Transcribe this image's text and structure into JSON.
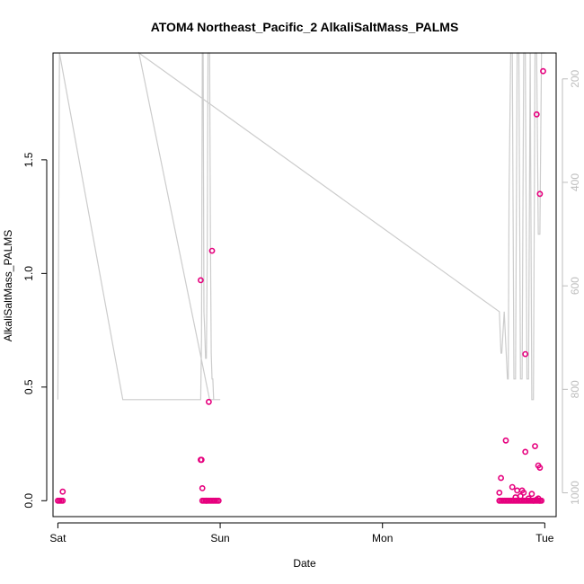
{
  "chart_data": {
    "type": "scatter",
    "title": "ATOM4 Northeast_Pacific_2 AlkaliSaltMass_PALMS",
    "xlabel": "Date",
    "ylabel": "AlkaliSaltMass_PALMS",
    "x_unit": "days since Sat 00:00",
    "xlim": [
      -0.03,
      3.07
    ],
    "ylim": [
      -0.07,
      1.97
    ],
    "x_ticks": [
      {
        "value": 0,
        "label": "Sat"
      },
      {
        "value": 1,
        "label": "Sun"
      },
      {
        "value": 2,
        "label": "Mon"
      },
      {
        "value": 3,
        "label": "Tue"
      }
    ],
    "y_ticks": [
      {
        "value": 0.0,
        "label": "0.0"
      },
      {
        "value": 0.5,
        "label": "0.5"
      },
      {
        "value": 1.0,
        "label": "1.0"
      },
      {
        "value": 1.5,
        "label": "1.5"
      }
    ],
    "y2_reversed": true,
    "y2lim": [
      1046,
      150
    ],
    "y2_ticks": [
      {
        "value": 200,
        "label": "200"
      },
      {
        "value": 400,
        "label": "400"
      },
      {
        "value": 600,
        "label": "600"
      },
      {
        "value": 800,
        "label": "800"
      },
      {
        "value": 1000,
        "label": "1000"
      }
    ],
    "grid": false,
    "colors": {
      "points": "#e6007e",
      "pressure_line": "#cccccc",
      "axis": "#000000",
      "right_axis": "#bdbdbd"
    },
    "series": [
      {
        "kind": "points",
        "x": [
          0.0,
          0.01,
          0.02,
          0.03,
          0.03,
          0.88,
          0.88,
          0.885,
          0.89,
          0.89,
          0.9,
          0.91,
          0.915,
          0.92,
          0.93,
          0.94,
          0.95,
          0.96,
          0.97,
          0.98,
          0.99,
          0.93,
          0.95,
          2.72,
          2.72,
          2.73,
          2.74,
          2.75,
          2.76,
          2.77,
          2.78,
          2.79,
          2.8,
          2.81,
          2.82,
          2.83,
          2.84,
          2.85,
          2.86,
          2.87,
          2.88,
          2.89,
          2.9,
          2.91,
          2.92,
          2.93,
          2.94,
          2.95,
          2.96,
          2.97,
          2.98,
          2.73,
          2.76,
          2.8,
          2.82,
          2.83,
          2.85,
          2.86,
          2.87,
          2.9,
          2.92,
          2.93,
          2.95,
          2.96,
          2.97,
          2.88,
          2.94,
          2.96,
          2.97
        ],
        "y": [
          0.0,
          0.0,
          0.0,
          0.0,
          0.04,
          0.97,
          0.18,
          0.18,
          0.055,
          0.0,
          0.0,
          0.0,
          0.0,
          0.0,
          0.0,
          0.0,
          0.0,
          0.0,
          0.0,
          0.0,
          0.0,
          0.435,
          1.1,
          0.0,
          0.035,
          0.0,
          0.0,
          0.0,
          0.0,
          0.0,
          0.0,
          0.0,
          0.0,
          0.0,
          0.0,
          0.0,
          0.0,
          0.0,
          0.0,
          0.0,
          0.0,
          0.0,
          0.0,
          0.0,
          0.0,
          0.0,
          0.0,
          0.0,
          0.0,
          0.0,
          0.0,
          0.1,
          0.265,
          0.06,
          0.015,
          0.045,
          0.02,
          0.045,
          0.035,
          0.01,
          0.03,
          0.0,
          0.005,
          0.01,
          0.0,
          0.215,
          0.24,
          0.155,
          0.145
        ]
      },
      {
        "kind": "points",
        "x": [
          2.88,
          2.95,
          2.97,
          2.99
        ],
        "y": [
          0.645,
          1.7,
          1.35,
          1.89
        ]
      },
      {
        "kind": "y2-line",
        "x": [
          0.0,
          0.005,
          0.01,
          0.4,
          0.87,
          0.875,
          0.88,
          0.885,
          0.89,
          0.895,
          0.9,
          0.905,
          0.91,
          0.915,
          0.92,
          0.925,
          0.93,
          0.935,
          0.94,
          0.945,
          0.95,
          0.955,
          0.96,
          0.97,
          1.0,
          0.97,
          0.96,
          0.955,
          0.95,
          0.945,
          0.94,
          0.935,
          0.5,
          2.72,
          2.73,
          2.735,
          2.75,
          2.77,
          2.775,
          2.78,
          2.79,
          2.8,
          2.81,
          2.82,
          2.83,
          2.84,
          2.85,
          2.86,
          2.87,
          2.88,
          2.89,
          2.9,
          2.91,
          2.92,
          2.93,
          2.94,
          2.95,
          2.96,
          2.97,
          2.98,
          2.985,
          2.99,
          3.0
        ],
        "y": [
          820,
          500,
          150,
          820,
          820,
          820,
          820,
          700,
          150,
          150,
          650,
          690,
          740,
          740,
          560,
          150,
          150,
          150,
          500,
          730,
          780,
          780,
          820,
          820,
          820,
          820,
          820,
          820,
          820,
          820,
          820,
          820,
          150,
          650,
          730,
          730,
          650,
          780,
          780,
          420,
          150,
          150,
          780,
          780,
          150,
          150,
          780,
          780,
          150,
          150,
          780,
          780,
          150,
          820,
          820,
          150,
          150,
          500,
          500,
          150,
          150,
          150,
          150
        ]
      }
    ]
  }
}
